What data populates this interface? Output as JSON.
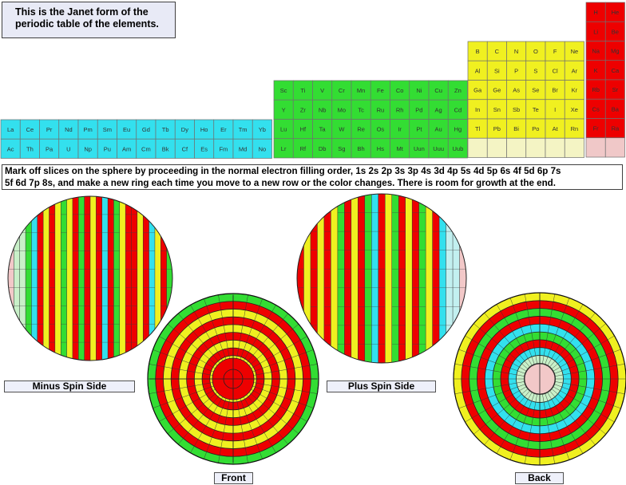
{
  "title": {
    "line1": "This is the Janet form of the",
    "line2": "periodic table of the elements."
  },
  "caption": {
    "line1": "Mark off slices on the sphere by proceeding in the normal electron filling order, 1s 2s 2p 3s 3p 4s 3d 4p 5s 4d 5p 6s 4f 5d 6p 7s",
    "line2": "5f 6d 7p 8s, and make a new ring each time you move to a new row or the color changes.  There is room for growth at the end."
  },
  "labels": {
    "minus": "Minus Spin Side",
    "plus": "Plus Spin Side",
    "front": "Front",
    "back": "Back"
  },
  "colors": {
    "f_block": "#33e0ee",
    "d_block": "#33dd33",
    "p_block": "#f0f020",
    "s_block": "#ee0000",
    "empty_p": "#f4f4c4",
    "empty_s": "#f0c8c8",
    "pale_f": "#c2f0f0",
    "pale_d": "#c8f0c8",
    "hub": "#f2c8c8"
  },
  "periodic_table": {
    "f_rows": [
      [
        "La",
        "Ce",
        "Pr",
        "Nd",
        "Pm",
        "Sm",
        "Eu",
        "Gd",
        "Tb",
        "Dy",
        "Ho",
        "Er",
        "Tm",
        "Yb"
      ],
      [
        "Ac",
        "Th",
        "Pa",
        "U",
        "Np",
        "Pu",
        "Am",
        "Cm",
        "Bk",
        "Cf",
        "Es",
        "Fm",
        "Md",
        "No"
      ]
    ],
    "d_rows": [
      [
        "Sc",
        "Ti",
        "V",
        "Cr",
        "Mn",
        "Fe",
        "Co",
        "Ni",
        "Cu",
        "Zn"
      ],
      [
        "Y",
        "Zr",
        "Nb",
        "Mo",
        "Tc",
        "Ru",
        "Rh",
        "Pd",
        "Ag",
        "Cd"
      ],
      [
        "Lu",
        "Hf",
        "Ta",
        "W",
        "Re",
        "Os",
        "Ir",
        "Pt",
        "Au",
        "Hg"
      ],
      [
        "Lr",
        "Rf",
        "Db",
        "Sg",
        "Bh",
        "Hs",
        "Mt",
        "Uun",
        "Uuu",
        "Uub"
      ]
    ],
    "p_rows": [
      [
        "B",
        "C",
        "N",
        "O",
        "F",
        "Ne"
      ],
      [
        "Al",
        "Si",
        "P",
        "S",
        "Cl",
        "Ar"
      ],
      [
        "Ga",
        "Ge",
        "As",
        "Se",
        "Br",
        "Kr"
      ],
      [
        "In",
        "Sn",
        "Sb",
        "Te",
        "I",
        "Xe"
      ],
      [
        "Tl",
        "Pb",
        "Bi",
        "Po",
        "At",
        "Rn"
      ],
      [
        "",
        "",
        "",
        "",
        "",
        ""
      ]
    ],
    "s_rows": [
      [
        "H",
        "He"
      ],
      [
        "Li",
        "Be"
      ],
      [
        "Na",
        "Mg"
      ],
      [
        "K",
        "Ca"
      ],
      [
        "Rb",
        "Sr"
      ],
      [
        "Cs",
        "Ba"
      ],
      [
        "Fr",
        "Ra"
      ],
      [
        "",
        ""
      ]
    ]
  }
}
